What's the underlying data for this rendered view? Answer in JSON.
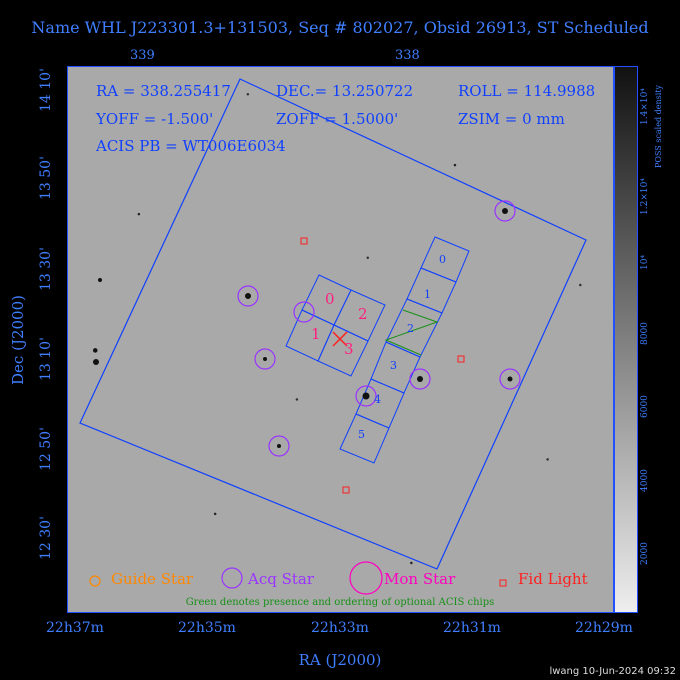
{
  "title": "Name WHL J223301.3+131503, Seq # 802027, Obsid 26913, ST Scheduled",
  "info": {
    "ra": "RA = 338.255417",
    "dec": "DEC.= 13.250722",
    "roll": "ROLL = 114.9988",
    "yoff": "YOFF = -1.500'",
    "zoff": "ZOFF = 1.5000'",
    "zsim": "ZSIM = 0 mm",
    "acis": "ACIS PB = WT006E6034"
  },
  "axes": {
    "xlabel": "RA (J2000)",
    "ylabel": "Dec (J2000)",
    "ra_ticks": [
      "22h37m",
      "22h35m",
      "22h33m",
      "22h31m",
      "22h29m"
    ],
    "dec_ticks": [
      "14 10'",
      "13 50'",
      "13 30'",
      "13 10'",
      "12 50'",
      "12 30'"
    ],
    "top_ticks": [
      "339",
      "338"
    ]
  },
  "chips": {
    "i_labels": [
      "0",
      "2",
      "1",
      "3"
    ],
    "s_labels": [
      "0",
      "1",
      "2",
      "3",
      "4",
      "5"
    ]
  },
  "colorbar": {
    "title": "POSS scaled density",
    "ticks": [
      "2000",
      "4000",
      "6000",
      "8000",
      "10⁴",
      "1.2×10⁴",
      "1.4×10⁴"
    ]
  },
  "legend": {
    "guide": "Guide Star",
    "acq": "Acq Star",
    "mon": "Mon Star",
    "fid": "Fid Light"
  },
  "note": "Green denotes presence and ordering of optional ACIS chips",
  "stamp": "lwang 10-Jun-2024 09:32",
  "colors": {
    "axis": "#3f7fff",
    "field": "#1040ff",
    "acq": "#9933ff",
    "fid": "#ff2020",
    "chip_label": "#ff2080",
    "guide": "#ff8800",
    "optional": "#189018"
  }
}
